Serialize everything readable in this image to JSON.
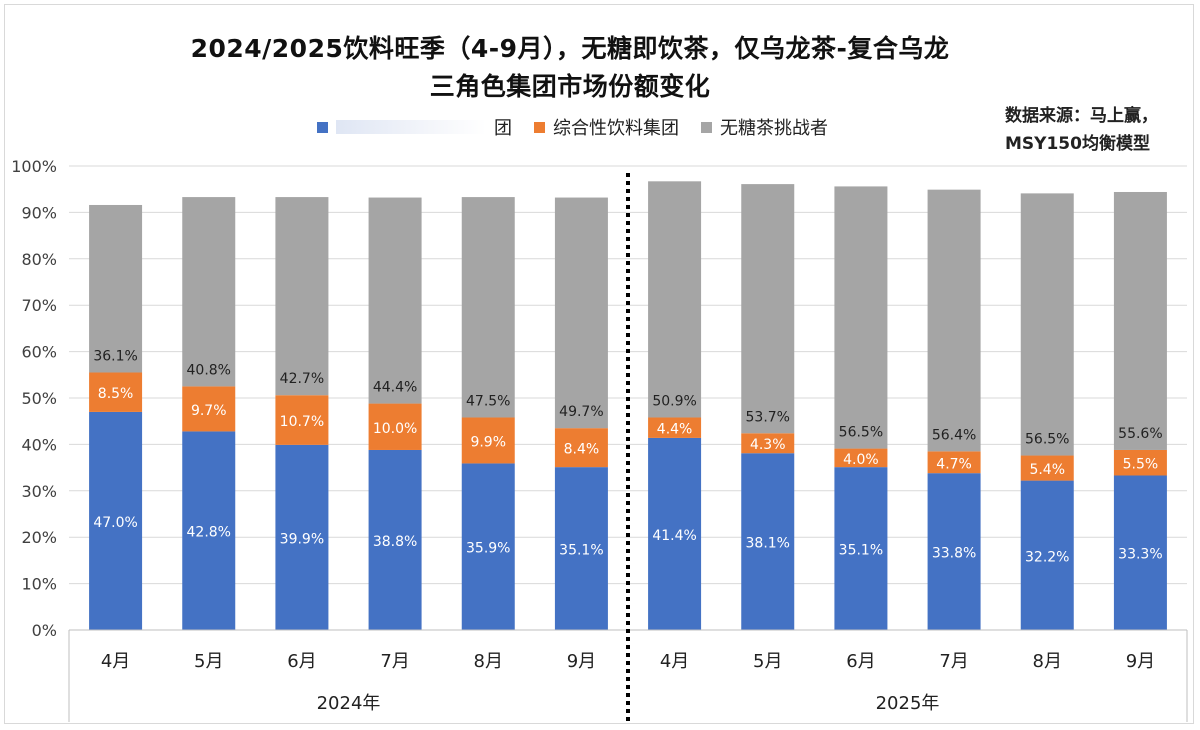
{
  "title": {
    "line1": "2024/2025饮料旺季（4-9月），无糖即饮茶，仅乌龙茶-复合乌龙",
    "line2": "三角色集团市场份额变化"
  },
  "source": {
    "line1": "数据来源：马上赢，",
    "line2": "MSY150均衡模型"
  },
  "legend": [
    {
      "label": "团",
      "color": "#4472C4",
      "blurred_prefix": true
    },
    {
      "label": "综合性饮料集团",
      "color": "#ED7D31"
    },
    {
      "label": "无糖茶挑战者",
      "color": "#A5A5A5"
    }
  ],
  "chart_data": {
    "type": "bar",
    "stacked": true,
    "categories": [
      "4月",
      "5月",
      "6月",
      "7月",
      "8月",
      "9月",
      "4月",
      "5月",
      "6月",
      "7月",
      "8月",
      "9月"
    ],
    "groups": [
      {
        "label": "2024年",
        "categories": [
          "4月",
          "5月",
          "6月",
          "7月",
          "8月",
          "9月"
        ]
      },
      {
        "label": "2025年",
        "categories": [
          "4月",
          "5月",
          "6月",
          "7月",
          "8月",
          "9月"
        ]
      }
    ],
    "series": [
      {
        "name": "团",
        "color": "#4472C4",
        "values": [
          47.0,
          42.8,
          39.9,
          38.8,
          35.9,
          35.1,
          41.4,
          38.1,
          35.1,
          33.8,
          32.2,
          33.3
        ]
      },
      {
        "name": "综合性饮料集团",
        "color": "#ED7D31",
        "values": [
          8.5,
          9.7,
          10.7,
          10.0,
          9.9,
          8.4,
          4.4,
          4.3,
          4.0,
          4.7,
          5.4,
          5.5
        ]
      },
      {
        "name": "无糖茶挑战者",
        "color": "#A5A5A5",
        "values": [
          36.1,
          40.8,
          42.7,
          44.4,
          47.5,
          49.7,
          50.9,
          53.7,
          56.5,
          56.4,
          56.5,
          55.6
        ]
      }
    ],
    "yticks": [
      "0%",
      "10%",
      "20%",
      "30%",
      "40%",
      "50%",
      "60%",
      "70%",
      "80%",
      "90%",
      "100%"
    ],
    "ylim": [
      0,
      100
    ],
    "grid": true,
    "legend_position": "top",
    "divider": "dotted line between 2024年 and 2025年"
  }
}
